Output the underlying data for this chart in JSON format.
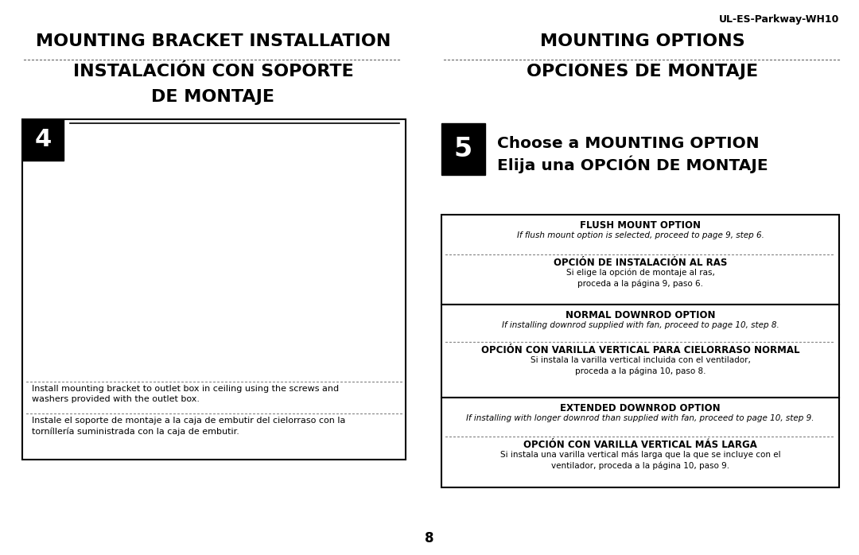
{
  "bg_color": "#ffffff",
  "text_color": "#000000",
  "model_number": "UL-ES-Parkway-WH10",
  "left_title_en": "MOUNTING BRACKET INSTALLATION",
  "left_title_es1": "INSTALACIÓN CON SOPORTE",
  "left_title_es2": "DE MONTAJE",
  "right_title_en": "MOUNTING OPTIONS",
  "right_title_es": "OPCIONES DE MONTAJE",
  "step4_num": "4",
  "step5_num": "5",
  "step5_title_en": "Choose a MOUNTING OPTION",
  "step5_title_es": "Elija una OPCIÓN DE MONTAJE",
  "option1_title": "FLUSH MOUNT OPTION",
  "option1_en": "If flush mount option is selected, proceed to page 9, step 6.",
  "option1_es_title": "OPCIÓN DE INSTALACIÓN AL RAS",
  "option1_es": "Si elige la opción de montaje al ras,\nproceda a la página 9, paso 6.",
  "option2_title": "NORMAL DOWNROD OPTION",
  "option2_en": "If installing downrod supplied with fan, proceed to page 10, step 8.",
  "option2_es_title": "OPCIÓN CON VARILLA VERTICAL PARA CIELORRASO NORMAL",
  "option2_es": "Si instala la varilla vertical incluida con el ventilador,\nproceda a la página 10, paso 8.",
  "option3_title": "EXTENDED DOWNROD OPTION",
  "option3_en": "If installing with longer downrod than supplied with fan, proceed to page 10, step 9.",
  "option3_es_title": "OPCIÓN CON VARILLA VERTICAL MÁS LARGA",
  "option3_es": "Si instala una varilla vertical más larga que la que se incluye con el\nventilador, proceda a la página 10, paso 9.",
  "caption_en": "Install mounting bracket to outlet box in ceiling using the screws and\nwashers provided with the outlet box.",
  "caption_es": "Instale el soporte de montaje a la caja de embutir del cielorraso con la\ntorníllería suministrada con la caja de embutir.",
  "page_number": "8"
}
